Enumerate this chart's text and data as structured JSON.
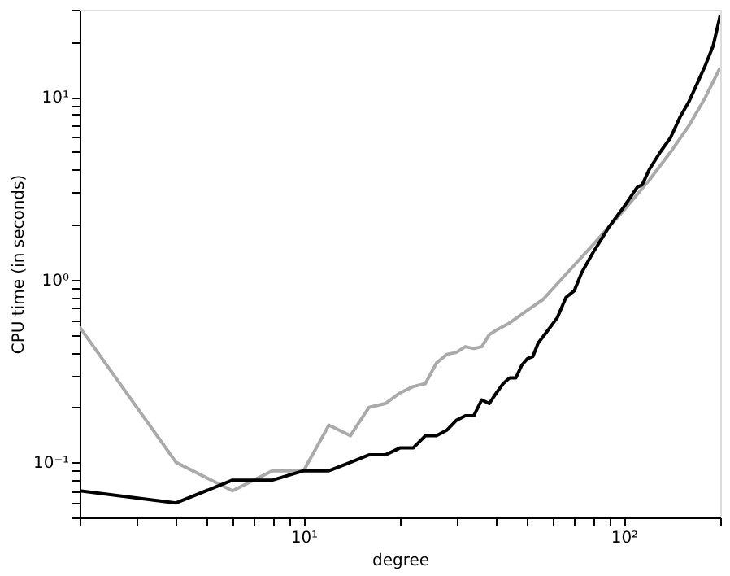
{
  "chart_data": {
    "type": "line",
    "xlabel": "degree",
    "ylabel": "CPU time (in seconds)",
    "log": "xy",
    "grid": false,
    "marker": "none",
    "line_style": "solid",
    "xlim": [
      2,
      200
    ],
    "ylim": [
      0.05,
      30
    ],
    "xticks": [
      {
        "value": 2,
        "label": null
      },
      {
        "value": 3,
        "label": null
      },
      {
        "value": 4,
        "label": null
      },
      {
        "value": 5,
        "label": null
      },
      {
        "value": 6,
        "label": null
      },
      {
        "value": 7,
        "label": null
      },
      {
        "value": 8,
        "label": null
      },
      {
        "value": 9,
        "label": null
      },
      {
        "value": 10,
        "label": "10¹"
      },
      {
        "value": 20,
        "label": null
      },
      {
        "value": 30,
        "label": null
      },
      {
        "value": 40,
        "label": null
      },
      {
        "value": 50,
        "label": null
      },
      {
        "value": 60,
        "label": null
      },
      {
        "value": 70,
        "label": null
      },
      {
        "value": 80,
        "label": null
      },
      {
        "value": 90,
        "label": null
      },
      {
        "value": 100,
        "label": "10²"
      },
      {
        "value": 200,
        "label": null
      }
    ],
    "yticks": [
      {
        "value": 0.05,
        "label": null
      },
      {
        "value": 0.06,
        "label": null
      },
      {
        "value": 0.07,
        "label": null
      },
      {
        "value": 0.08,
        "label": null
      },
      {
        "value": 0.09,
        "label": null
      },
      {
        "value": 0.1,
        "label": "10⁻¹"
      },
      {
        "value": 0.2,
        "label": null
      },
      {
        "value": 0.3,
        "label": null
      },
      {
        "value": 0.4,
        "label": null
      },
      {
        "value": 0.5,
        "label": null
      },
      {
        "value": 0.6,
        "label": null
      },
      {
        "value": 0.7,
        "label": null
      },
      {
        "value": 0.8,
        "label": null
      },
      {
        "value": 0.9,
        "label": null
      },
      {
        "value": 1,
        "label": "10⁰"
      },
      {
        "value": 2,
        "label": null
      },
      {
        "value": 3,
        "label": null
      },
      {
        "value": 4,
        "label": null
      },
      {
        "value": 5,
        "label": null
      },
      {
        "value": 6,
        "label": null
      },
      {
        "value": 7,
        "label": null
      },
      {
        "value": 8,
        "label": null
      },
      {
        "value": 9,
        "label": null
      },
      {
        "value": 10,
        "label": "10¹"
      },
      {
        "value": 20,
        "label": null
      },
      {
        "value": 30,
        "label": null
      }
    ],
    "series": [
      {
        "color": "#aaaaaa",
        "x": [
          2,
          4,
          6,
          8,
          10,
          12,
          14,
          16,
          18,
          20,
          22,
          24,
          26,
          28,
          30,
          32,
          34,
          36,
          38,
          40,
          44,
          50,
          56,
          62,
          70,
          80,
          90,
          100,
          120,
          140,
          160,
          180,
          200
        ],
        "values": [
          0.55,
          0.1,
          0.07,
          0.09,
          0.09,
          0.16,
          0.14,
          0.2,
          0.21,
          0.24,
          0.26,
          0.27,
          0.35,
          0.39,
          0.4,
          0.43,
          0.42,
          0.43,
          0.5,
          0.53,
          0.58,
          0.68,
          0.78,
          0.95,
          1.2,
          1.55,
          1.95,
          2.4,
          3.5,
          5.0,
          7.0,
          10,
          14.5
        ]
      },
      {
        "color": "#000000",
        "x": [
          2,
          4,
          6,
          8,
          10,
          12,
          14,
          16,
          18,
          20,
          22,
          24,
          26,
          28,
          30,
          32,
          34,
          36,
          38,
          40,
          42,
          44,
          46,
          48,
          50,
          52,
          54,
          58,
          62,
          66,
          70,
          74,
          80,
          90,
          100,
          110,
          114,
          120,
          130,
          140,
          150,
          160,
          170,
          180,
          190,
          200
        ],
        "values": [
          0.07,
          0.06,
          0.08,
          0.08,
          0.09,
          0.09,
          0.1,
          0.11,
          0.11,
          0.12,
          0.12,
          0.14,
          0.14,
          0.15,
          0.17,
          0.18,
          0.18,
          0.22,
          0.21,
          0.24,
          0.27,
          0.29,
          0.29,
          0.34,
          0.37,
          0.38,
          0.45,
          0.53,
          0.62,
          0.8,
          0.87,
          1.1,
          1.4,
          1.95,
          2.5,
          3.2,
          3.3,
          4.0,
          5.0,
          6.0,
          7.8,
          9.5,
          12,
          15,
          19,
          28
        ]
      }
    ]
  }
}
